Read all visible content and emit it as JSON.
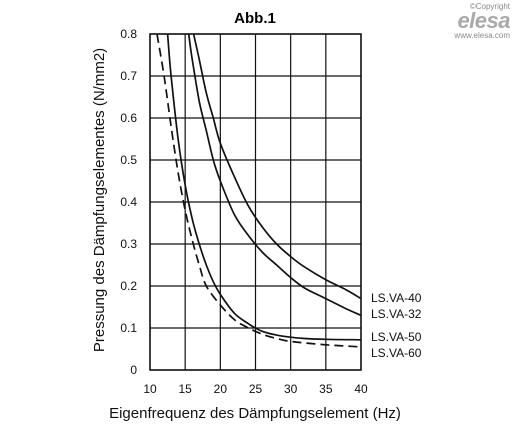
{
  "brand": {
    "copyright": "©Copyright",
    "logo_text": "elesa",
    "website": "www.elesa.com"
  },
  "chart_data": {
    "type": "line",
    "title": "Abb.1",
    "xlabel": "Eigenfrequenz des Dämpfungselement (Hz)",
    "ylabel": "Pressung des Dämpfungselementes (N/mm2)",
    "xlim": [
      10,
      40
    ],
    "ylim": [
      0,
      0.8
    ],
    "xticks": [
      "10",
      "15",
      "20",
      "25",
      "30",
      "35",
      "40"
    ],
    "yticks": [
      "0",
      "0.1",
      "0.2",
      "0.3",
      "0.4",
      "0.5",
      "0.6",
      "0.7",
      "0.8"
    ],
    "grid": true,
    "series": [
      {
        "name": "LS.VA-40",
        "style": "solid",
        "x": [
          16.2,
          17,
          18,
          19,
          20,
          22,
          24,
          26,
          28,
          30,
          32,
          35,
          38,
          40
        ],
        "values": [
          0.8,
          0.74,
          0.66,
          0.6,
          0.54,
          0.46,
          0.39,
          0.34,
          0.3,
          0.27,
          0.245,
          0.215,
          0.19,
          0.17
        ]
      },
      {
        "name": "LS.VA-32",
        "style": "solid",
        "x": [
          15.5,
          16,
          17,
          18,
          19,
          20,
          22,
          24,
          26,
          28,
          30,
          32,
          35,
          38,
          40
        ],
        "values": [
          0.8,
          0.74,
          0.64,
          0.57,
          0.5,
          0.45,
          0.37,
          0.32,
          0.28,
          0.25,
          0.22,
          0.195,
          0.17,
          0.145,
          0.13
        ]
      },
      {
        "name": "LS.VA-50",
        "style": "solid",
        "x": [
          12.5,
          13,
          14,
          15,
          16,
          17,
          18,
          19,
          20,
          22,
          24,
          25,
          26,
          28,
          30,
          32,
          35,
          40
        ],
        "values": [
          0.8,
          0.7,
          0.55,
          0.44,
          0.36,
          0.3,
          0.25,
          0.21,
          0.18,
          0.135,
          0.11,
          0.1,
          0.092,
          0.083,
          0.078,
          0.075,
          0.073,
          0.072
        ]
      },
      {
        "name": "LS.VA-60",
        "style": "dashed",
        "x": [
          11,
          12,
          13,
          14,
          15,
          16,
          17,
          18,
          20,
          22,
          24,
          26,
          28,
          30,
          35,
          40
        ],
        "values": [
          0.8,
          0.7,
          0.58,
          0.47,
          0.38,
          0.31,
          0.25,
          0.2,
          0.155,
          0.12,
          0.1,
          0.085,
          0.075,
          0.068,
          0.06,
          0.055
        ]
      }
    ]
  }
}
